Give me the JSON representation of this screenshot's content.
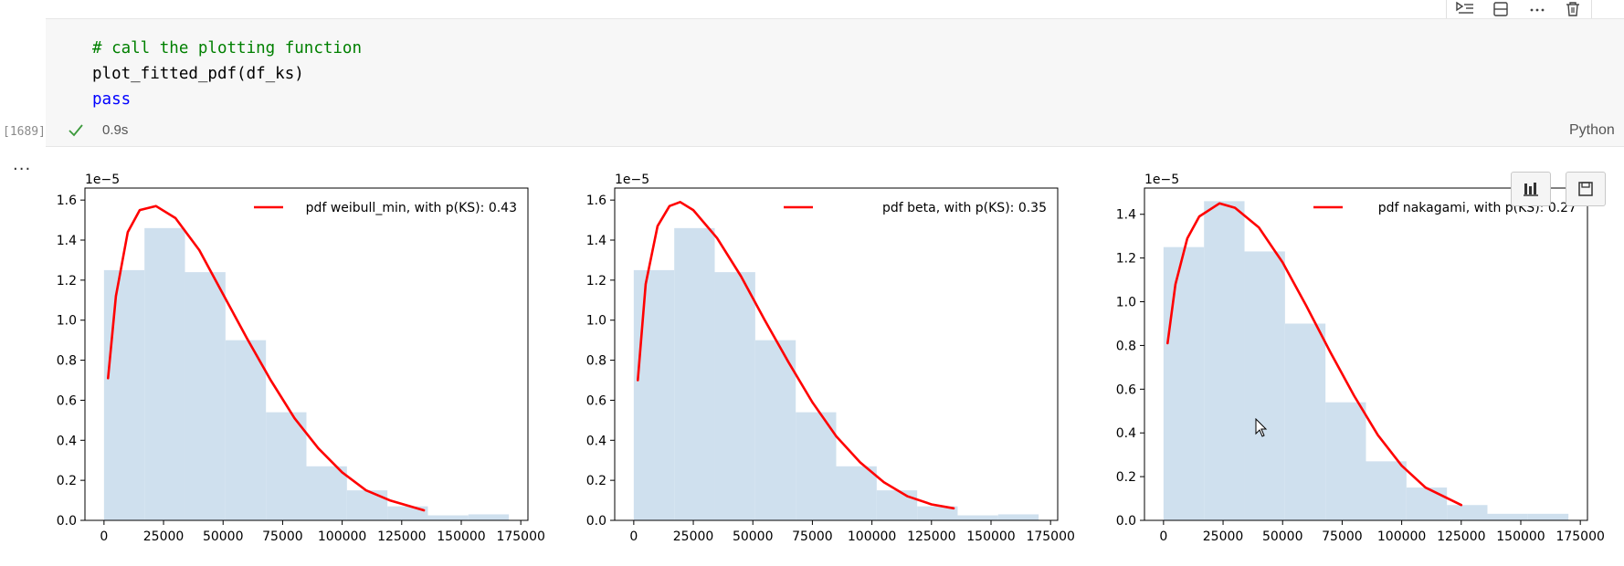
{
  "cell": {
    "code_lines": [
      {
        "kind": "comment",
        "text": "# call the plotting function"
      },
      {
        "kind": "text",
        "text": "plot_fitted_pdf(df_ks)"
      },
      {
        "kind": "keyword",
        "text": "pass"
      }
    ],
    "execution_count": "[1689]",
    "status": "success",
    "duration": "0.9s",
    "language": "Python"
  },
  "toolbar": {
    "icons": [
      "execute-above-icon",
      "split-cell-icon",
      "more-actions-icon",
      "delete-icon"
    ]
  },
  "output": {
    "collapsed_marker": "...",
    "buttons": [
      "chart-icon",
      "save-icon"
    ]
  },
  "colors": {
    "hist": "#cfe0ee",
    "pdf": "#ff0000",
    "comment": "#008000",
    "keyword": "#0000ff",
    "check": "#3c9a3c"
  },
  "chart_data": [
    {
      "type": "histogram+line",
      "title": "",
      "xlabel": "",
      "ylabel": "",
      "offset_label": "1e−5",
      "xlim": [
        -8000,
        178000
      ],
      "ylim": [
        0,
        1.66
      ],
      "xticks": [
        0,
        25000,
        50000,
        75000,
        100000,
        125000,
        150000,
        175000
      ],
      "xtick_labels": [
        "0",
        "25000",
        "50000",
        "75000",
        "100000",
        "125000",
        "150000",
        "175000"
      ],
      "yticks": [
        0,
        0.2,
        0.4,
        0.6,
        0.8,
        1.0,
        1.2,
        1.4,
        1.6
      ],
      "ytick_labels": [
        "0.0",
        "0.2",
        "0.4",
        "0.6",
        "0.8",
        "1.0",
        "1.2",
        "1.4",
        "1.6"
      ],
      "bins": [
        0,
        17000,
        34000,
        51000,
        68000,
        85000,
        102000,
        119000,
        136000,
        153000,
        170000
      ],
      "hist_values": [
        1.25,
        1.46,
        1.24,
        0.9,
        0.54,
        0.27,
        0.15,
        0.07,
        0.025,
        0.03
      ],
      "series": [
        {
          "name": "pdf weibull_min, with p(KS): 0.43",
          "x": [
            1700,
            5000,
            10000,
            15000,
            21800,
            30000,
            40000,
            50000,
            60000,
            70000,
            80000,
            90000,
            100000,
            110000,
            120000,
            134300
          ],
          "y": [
            0.71,
            1.12,
            1.44,
            1.55,
            1.57,
            1.51,
            1.35,
            1.13,
            0.91,
            0.7,
            0.51,
            0.36,
            0.24,
            0.15,
            0.1,
            0.05
          ]
        }
      ],
      "legend": "top-right"
    },
    {
      "type": "histogram+line",
      "title": "",
      "xlabel": "",
      "ylabel": "",
      "offset_label": "1e−5",
      "xlim": [
        -8000,
        178000
      ],
      "ylim": [
        0,
        1.66
      ],
      "xticks": [
        0,
        25000,
        50000,
        75000,
        100000,
        125000,
        150000,
        175000
      ],
      "xtick_labels": [
        "0",
        "25000",
        "50000",
        "75000",
        "100000",
        "125000",
        "150000",
        "175000"
      ],
      "yticks": [
        0,
        0.2,
        0.4,
        0.6,
        0.8,
        1.0,
        1.2,
        1.4,
        1.6
      ],
      "ytick_labels": [
        "0.0",
        "0.2",
        "0.4",
        "0.6",
        "0.8",
        "1.0",
        "1.2",
        "1.4",
        "1.6"
      ],
      "bins": [
        0,
        17000,
        34000,
        51000,
        68000,
        85000,
        102000,
        119000,
        136000,
        153000,
        170000
      ],
      "hist_values": [
        1.25,
        1.46,
        1.24,
        0.9,
        0.54,
        0.27,
        0.15,
        0.07,
        0.025,
        0.03
      ],
      "series": [
        {
          "name": "pdf beta, with p(KS): 0.35",
          "x": [
            1700,
            5000,
            10000,
            15000,
            19500,
            25000,
            35000,
            45000,
            55000,
            65000,
            75000,
            85000,
            95000,
            105000,
            115000,
            125000,
            134300
          ],
          "y": [
            0.7,
            1.18,
            1.47,
            1.57,
            1.59,
            1.55,
            1.41,
            1.22,
            1.0,
            0.79,
            0.59,
            0.42,
            0.29,
            0.19,
            0.12,
            0.08,
            0.06
          ]
        }
      ],
      "legend": "top-right"
    },
    {
      "type": "histogram+line",
      "title": "",
      "xlabel": "",
      "ylabel": "",
      "offset_label": "1e−5",
      "xlim": [
        -8000,
        178000
      ],
      "ylim": [
        0,
        1.52
      ],
      "xticks": [
        0,
        25000,
        50000,
        75000,
        100000,
        125000,
        150000,
        175000
      ],
      "xtick_labels": [
        "0",
        "25000",
        "50000",
        "75000",
        "100000",
        "125000",
        "150000",
        "175000"
      ],
      "yticks": [
        0,
        0.2,
        0.4,
        0.6,
        0.8,
        1.0,
        1.2,
        1.4
      ],
      "ytick_labels": [
        "0.0",
        "0.2",
        "0.4",
        "0.6",
        "0.8",
        "1.0",
        "1.2",
        "1.4"
      ],
      "bins": [
        0,
        17000,
        34000,
        51000,
        68000,
        85000,
        102000,
        119000,
        136000,
        153000,
        170000
      ],
      "hist_values": [
        1.25,
        1.46,
        1.23,
        0.9,
        0.54,
        0.27,
        0.15,
        0.07,
        0.03,
        0.03
      ],
      "series": [
        {
          "name": "pdf nakagami, with p(KS): 0.27",
          "x": [
            1700,
            5000,
            10000,
            15000,
            23500,
            30000,
            40000,
            50000,
            60000,
            70000,
            80000,
            90000,
            100000,
            110000,
            125000
          ],
          "y": [
            0.81,
            1.08,
            1.29,
            1.39,
            1.45,
            1.43,
            1.34,
            1.18,
            0.98,
            0.77,
            0.57,
            0.39,
            0.25,
            0.15,
            0.07
          ]
        }
      ],
      "legend": "top-right"
    }
  ]
}
